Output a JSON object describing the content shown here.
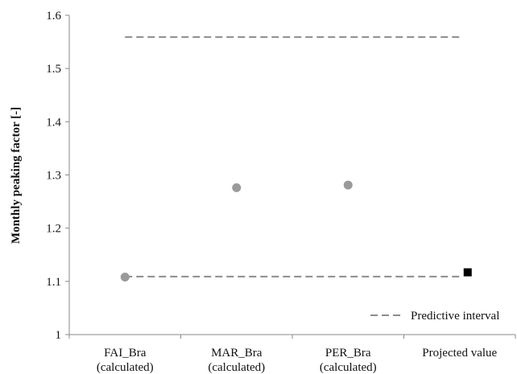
{
  "chart_data": {
    "type": "scatter",
    "title": "",
    "xlabel": "",
    "ylabel": "Monthly peaking factor [-]",
    "ylim": [
      1,
      1.6
    ],
    "yticks": [
      "1",
      "1.1",
      "1.2",
      "1.3",
      "1.4",
      "1.5",
      "1.6"
    ],
    "grid": false,
    "categories": [
      [
        "FAI_Bra",
        "(calculated)"
      ],
      [
        "MAR_Bra",
        "(calculated)"
      ],
      [
        "PER_Bra",
        "(calculated)"
      ],
      [
        "Projected value"
      ]
    ],
    "calculated": {
      "marker": "circle",
      "color": "#9a9a9a",
      "points": [
        {
          "category_index": 0,
          "y": 1.108
        },
        {
          "category_index": 1,
          "y": 1.276
        },
        {
          "category_index": 2,
          "y": 1.281
        }
      ]
    },
    "projected": {
      "marker": "square",
      "color": "#000000",
      "points": [
        {
          "category_index": 3,
          "y": 1.117
        }
      ]
    },
    "predictive_interval": {
      "name": "Predictive interval",
      "color": "#8c8c8c",
      "style": "dashed",
      "lower": 1.109,
      "upper": 1.559
    },
    "legend_position": "bottom-right"
  }
}
